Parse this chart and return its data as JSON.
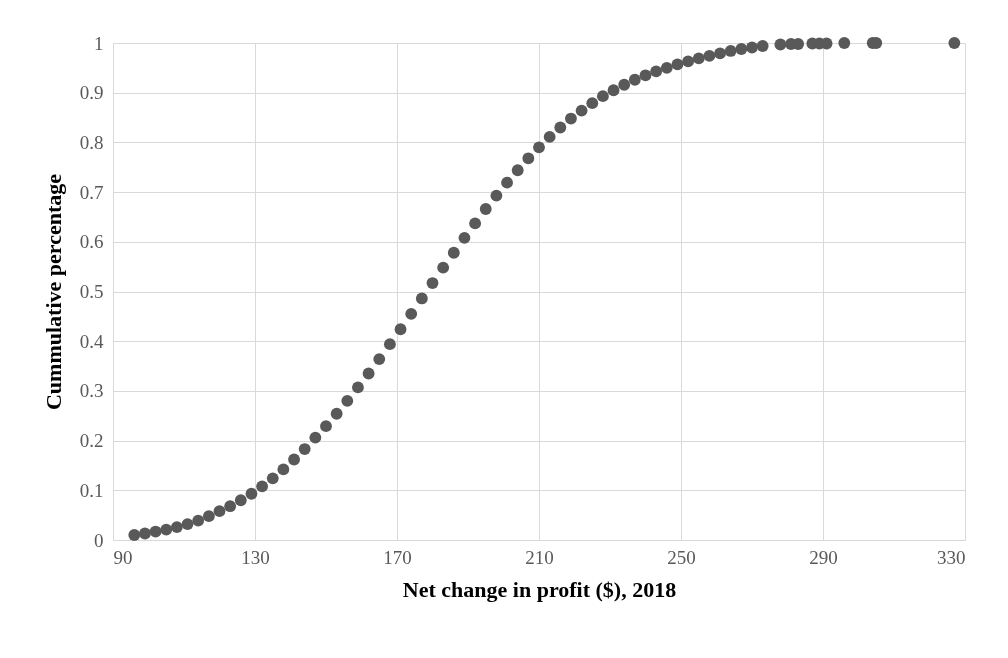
{
  "chart_data": {
    "type": "scatter",
    "xlabel": "Net change in profit ($), 2018",
    "ylabel": "Cummulative percentage",
    "x": [
      96,
      99,
      102,
      105,
      108,
      111,
      114,
      117,
      120,
      123,
      126,
      129,
      132,
      135,
      138,
      141,
      144,
      147,
      150,
      153,
      156,
      159,
      162,
      165,
      168,
      171,
      174,
      177,
      180,
      183,
      186,
      189,
      192,
      195,
      198,
      201,
      204,
      207,
      210,
      213,
      216,
      219,
      222,
      225,
      228,
      231,
      234,
      237,
      240,
      243,
      246,
      249,
      252,
      255,
      258,
      261,
      264,
      267,
      270,
      273,
      278,
      281,
      283,
      287,
      289,
      291,
      296,
      304,
      305,
      327
    ],
    "series": [
      {
        "color": "#595959",
        "values": [
          0.01,
          0.013,
          0.017,
          0.021,
          0.026,
          0.032,
          0.039,
          0.048,
          0.058,
          0.068,
          0.08,
          0.093,
          0.108,
          0.124,
          0.142,
          0.162,
          0.183,
          0.206,
          0.229,
          0.254,
          0.28,
          0.307,
          0.335,
          0.364,
          0.394,
          0.424,
          0.455,
          0.486,
          0.517,
          0.548,
          0.578,
          0.608,
          0.637,
          0.666,
          0.693,
          0.719,
          0.744,
          0.768,
          0.79,
          0.811,
          0.83,
          0.848,
          0.864,
          0.879,
          0.893,
          0.905,
          0.916,
          0.926,
          0.935,
          0.943,
          0.95,
          0.957,
          0.963,
          0.969,
          0.974,
          0.979,
          0.984,
          0.988,
          0.991,
          0.994,
          0.997,
          0.998,
          0.998,
          0.999,
          0.999,
          0.999,
          1,
          1,
          1,
          1
        ]
      }
    ],
    "xlim": [
      90,
      330
    ],
    "xticks": [
      90,
      130,
      170,
      210,
      250,
      290,
      330
    ],
    "ylim": [
      0,
      1
    ],
    "yticks": [
      0,
      0.1,
      0.2,
      0.3,
      0.4,
      0.5,
      0.6,
      0.7,
      0.8,
      0.9,
      1
    ],
    "grid": true,
    "marker": "circle"
  }
}
